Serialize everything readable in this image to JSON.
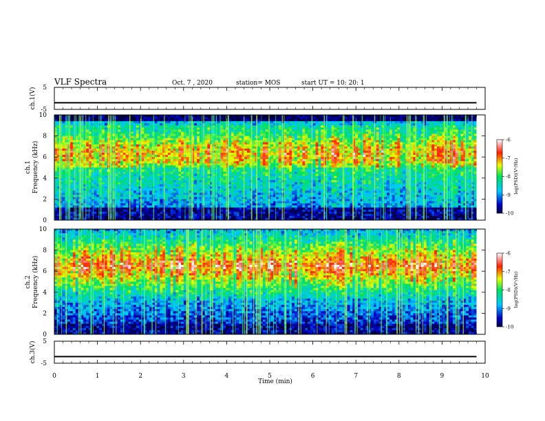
{
  "header": {
    "title": "VLF Spectra",
    "date": "Oct. 7 , 2020",
    "station": "station= MOS",
    "start": "start UT =   10: 20: 1"
  },
  "chart_data": [
    {
      "type": "line",
      "panel": "ch.1(V)",
      "ylabel": "ch.1(V)",
      "ylim": [
        -5,
        5
      ],
      "yticks": [
        "5",
        "-5"
      ],
      "x": [
        0,
        9.8
      ],
      "values": [
        -2,
        -2
      ]
    },
    {
      "type": "heatmap",
      "panel": "ch.1 spectrogram",
      "ylabel": "ch.1\nFrequency (kHz)",
      "ylabel_lines": [
        "ch.1",
        "Frequency (kHz)"
      ],
      "ylim": [
        0,
        10
      ],
      "yticks": [
        "0",
        "2",
        "4",
        "6",
        "8",
        "10"
      ],
      "xlim": [
        0,
        9.8
      ],
      "dominant_band_khz": [
        5,
        9
      ],
      "colorbar": {
        "label": "log(PSD)(V²/Hz)",
        "ticks": [
          "-6",
          "-7",
          "-8",
          "-9",
          "-10"
        ],
        "range": [
          -10,
          -6
        ]
      }
    },
    {
      "type": "heatmap",
      "panel": "ch.2 spectrogram",
      "ylabel": "ch.2\nFrequency (kHz)",
      "ylabel_lines": [
        "ch.2",
        "Frequency (kHz)"
      ],
      "ylim": [
        0,
        10
      ],
      "yticks": [
        "0",
        "2",
        "4",
        "6",
        "8",
        "10"
      ],
      "xlim": [
        0,
        9.8
      ],
      "dominant_band_khz": [
        5,
        8
      ],
      "colorbar": {
        "label": "log(PSD)(V²/Hz)",
        "ticks": [
          "-6",
          "-7",
          "-8",
          "-9",
          "-10"
        ],
        "range": [
          -10,
          -6
        ]
      }
    },
    {
      "type": "line",
      "panel": "ch.3(V)",
      "ylabel": "ch.3(V)",
      "ylim": [
        -5,
        5
      ],
      "yticks": [
        "5",
        "-5"
      ],
      "x": [
        0,
        9.8
      ],
      "values": [
        -2,
        -2
      ]
    }
  ],
  "xaxis": {
    "label": "Time (min)",
    "xlim": [
      0,
      10
    ],
    "ticks": [
      "0",
      "1",
      "2",
      "3",
      "4",
      "5",
      "6",
      "7",
      "8",
      "9",
      "10"
    ]
  },
  "colors": {
    "spectrum_low": "#000080",
    "spectrum_high": "#ff0000"
  }
}
